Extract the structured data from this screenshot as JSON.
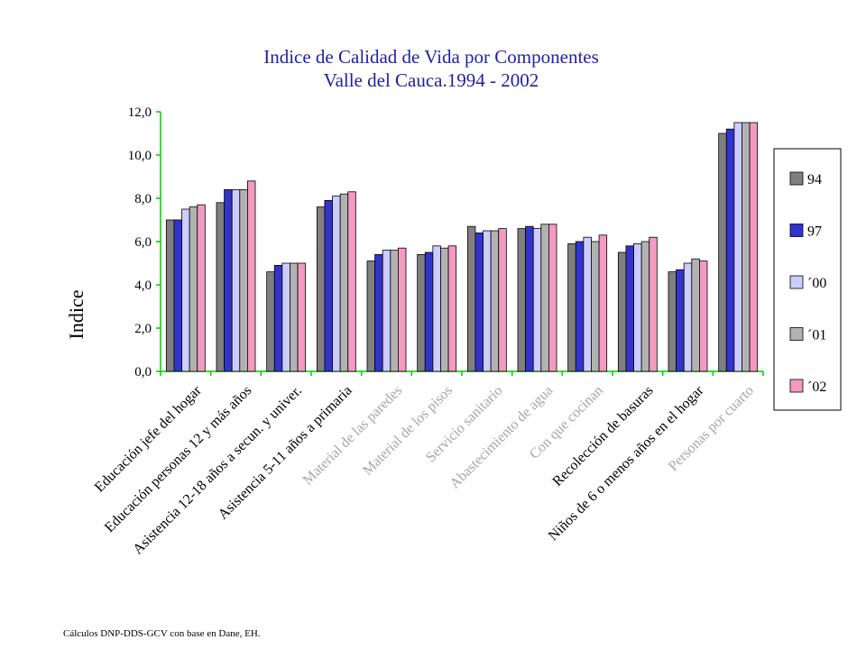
{
  "chart_data": {
    "type": "bar",
    "title": [
      "Indice de Calidad de Vida por Componentes",
      "Valle del Cauca.1994 - 2002"
    ],
    "ylabel": "Indice",
    "xlabel": "",
    "ylim": [
      0,
      12
    ],
    "yticks": [
      "0,0",
      "2,0",
      "4,0",
      "6,0",
      "8,0",
      "10,0",
      "12,0"
    ],
    "grid": false,
    "legend_position": "right",
    "categories": [
      "Educación jefe del hogar",
      "Educación personas 12 y más años",
      "Asistencia 12-18 años a secun. y univer.",
      "Asistencia 5-11 años a primaria",
      "Material de las paredes",
      "Material de los pisos",
      "Servicio sanitario",
      "Abastecimiento de agua",
      "Con que cocinan",
      "Recolección de basuras",
      "Niños de 6 o menos años en el hogar",
      "Personas por cuarto"
    ],
    "category_label_style": [
      "dark",
      "dark",
      "dark",
      "dark",
      "light",
      "light",
      "light",
      "light",
      "light",
      "dark",
      "dark",
      "light"
    ],
    "series": [
      {
        "name": "94",
        "color": "#808080",
        "values": [
          7.0,
          7.8,
          4.6,
          7.6,
          5.1,
          5.4,
          6.7,
          6.6,
          5.9,
          5.5,
          4.6,
          11.0
        ]
      },
      {
        "name": "97",
        "color": "#3333cc",
        "values": [
          7.0,
          8.4,
          4.9,
          7.9,
          5.4,
          5.5,
          6.4,
          6.7,
          6.0,
          5.8,
          4.7,
          11.2
        ]
      },
      {
        "name": "´00",
        "color": "#ccccff",
        "values": [
          7.5,
          8.4,
          5.0,
          8.1,
          5.6,
          5.8,
          6.5,
          6.6,
          6.2,
          5.9,
          5.0,
          11.5
        ]
      },
      {
        "name": "´01",
        "color": "#b2b2b2",
        "values": [
          7.6,
          8.4,
          5.0,
          8.2,
          5.6,
          5.7,
          6.5,
          6.8,
          6.0,
          6.0,
          5.2,
          11.5
        ]
      },
      {
        "name": "´02",
        "color": "#f39ac1",
        "values": [
          7.7,
          8.8,
          5.0,
          8.3,
          5.7,
          5.8,
          6.6,
          6.8,
          6.3,
          6.2,
          5.1,
          11.5
        ]
      }
    ],
    "axis_color": "#00cc00"
  },
  "source_note": "Cálculos DNP-DDS-GCV   con base en Dane, EH."
}
